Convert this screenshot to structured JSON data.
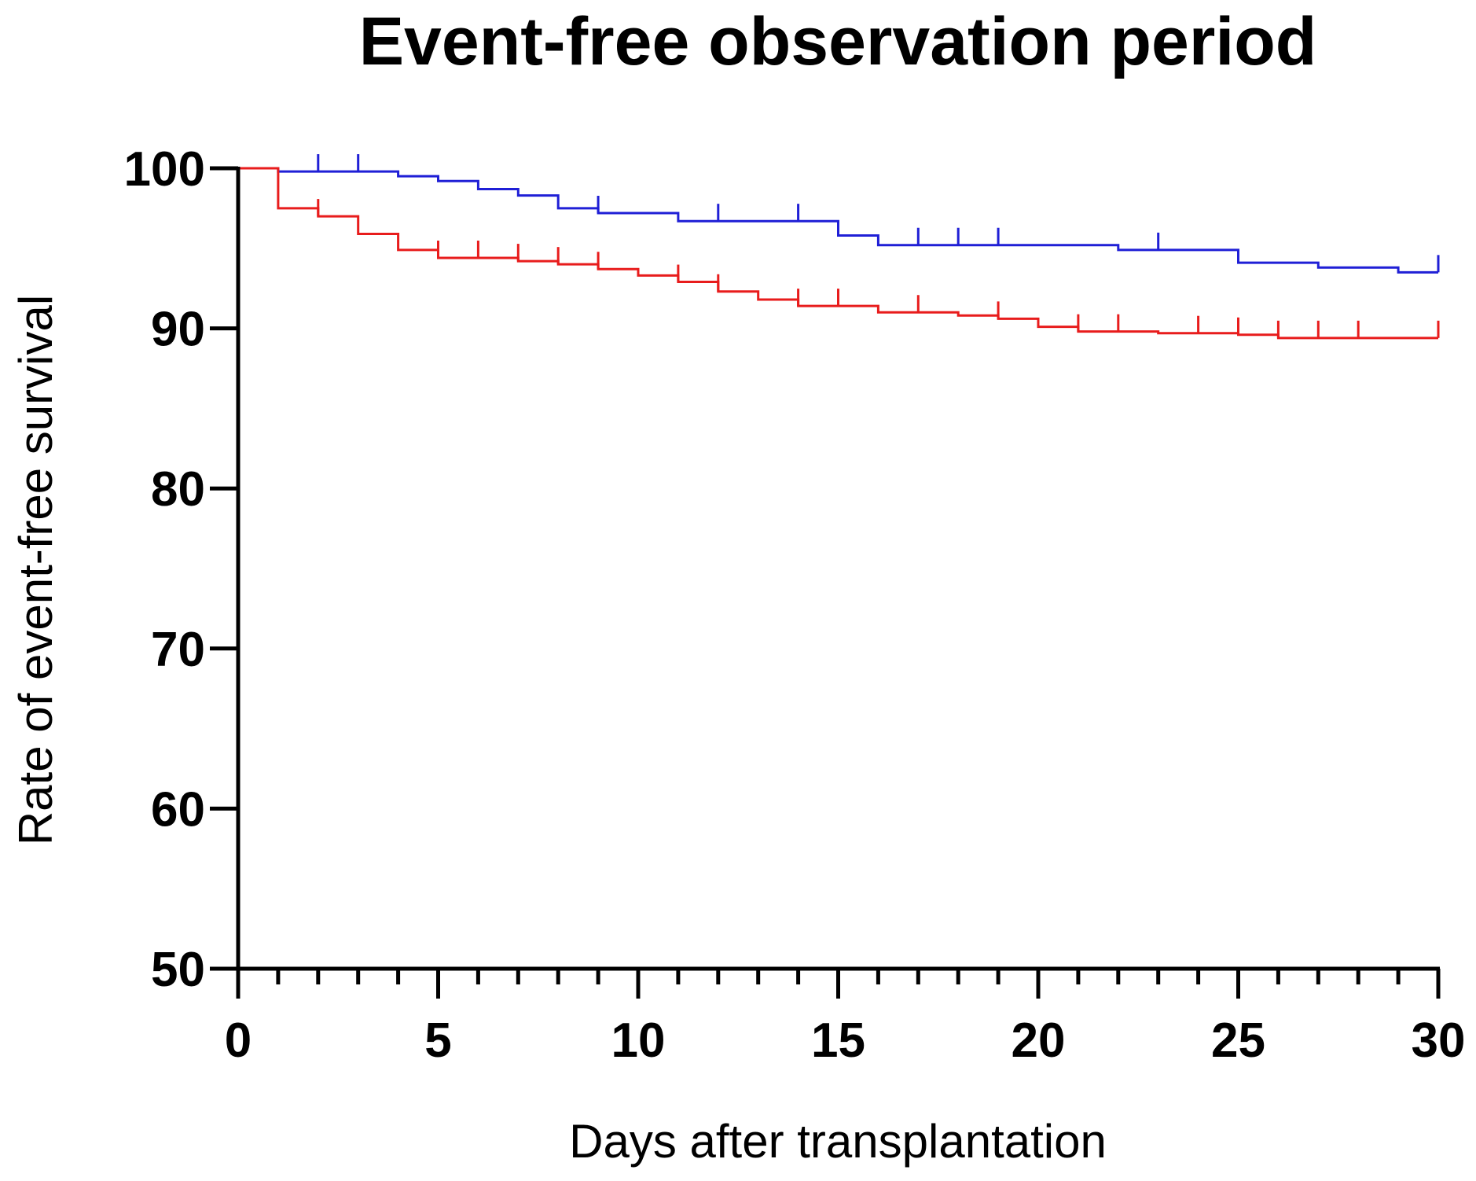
{
  "chart_data": {
    "type": "line",
    "subtype": "kaplan-meier-step",
    "title": "Event-free observation period",
    "xlabel": "Days after transplantation",
    "ylabel": "Rate of event-free survival",
    "xlim": [
      0,
      30
    ],
    "ylim": [
      50,
      100
    ],
    "x_major_ticks": [
      0,
      5,
      10,
      15,
      20,
      25,
      30
    ],
    "x_minor_step": 1,
    "y_ticks": [
      50,
      60,
      70,
      80,
      90,
      100
    ],
    "grid": false,
    "legend": "none",
    "series": [
      {
        "name": "blue group",
        "color": "#1f1fd6",
        "steps": [
          [
            0,
            100
          ],
          [
            1,
            99.8
          ],
          [
            4,
            99.5
          ],
          [
            5,
            99.2
          ],
          [
            6,
            98.7
          ],
          [
            7,
            98.3
          ],
          [
            8,
            97.5
          ],
          [
            9,
            97.2
          ],
          [
            11,
            96.7
          ],
          [
            15,
            95.8
          ],
          [
            16,
            95.2
          ],
          [
            22,
            94.9
          ],
          [
            25,
            94.1
          ],
          [
            27,
            93.8
          ],
          [
            29,
            93.5
          ],
          [
            30,
            93.5
          ]
        ],
        "censored": [
          2,
          3,
          9,
          12,
          14,
          17,
          18,
          19,
          23,
          30
        ]
      },
      {
        "name": "red group",
        "color": "#e81c1c",
        "steps": [
          [
            0,
            100
          ],
          [
            1,
            97.5
          ],
          [
            2,
            97.0
          ],
          [
            3,
            95.9
          ],
          [
            4,
            94.9
          ],
          [
            5,
            94.4
          ],
          [
            7,
            94.2
          ],
          [
            8,
            94.0
          ],
          [
            9,
            93.7
          ],
          [
            10,
            93.3
          ],
          [
            11,
            92.9
          ],
          [
            12,
            92.3
          ],
          [
            13,
            91.8
          ],
          [
            14,
            91.4
          ],
          [
            16,
            91.0
          ],
          [
            18,
            90.8
          ],
          [
            19,
            90.6
          ],
          [
            20,
            90.1
          ],
          [
            21,
            89.8
          ],
          [
            23,
            89.7
          ],
          [
            25,
            89.6
          ],
          [
            26,
            89.4
          ],
          [
            30,
            89.4
          ]
        ],
        "censored": [
          2,
          5,
          6,
          7,
          8,
          9,
          11,
          12,
          14,
          15,
          17,
          19,
          21,
          22,
          24,
          25,
          26,
          27,
          28,
          30
        ]
      }
    ]
  }
}
